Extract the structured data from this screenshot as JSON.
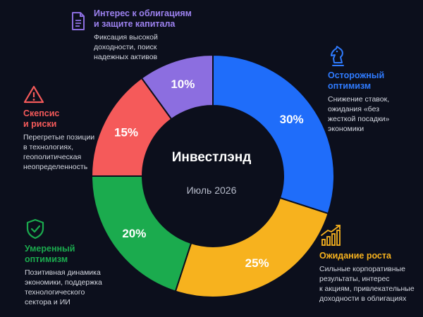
{
  "center": {
    "title": "Инвестлэнд",
    "subtitle": "Июль 2026"
  },
  "colors": {
    "background": "#0c0f1c",
    "cautious": "#1f6dfa",
    "growth": "#f7b21e",
    "moderate": "#1bab4e",
    "skeptic": "#f55a5a",
    "bonds": "#8c6ee0"
  },
  "chart_data": {
    "type": "pie",
    "donut": true,
    "categories": [
      "Осторожный оптимизм",
      "Ожидание роста",
      "Умеренный оптимизм",
      "Скепсис и риски",
      "Интерес к облигациям и защите капитала"
    ],
    "values": [
      30,
      25,
      20,
      15,
      10
    ],
    "value_labels": [
      "30%",
      "25%",
      "20%",
      "15%",
      "10%"
    ]
  },
  "categories": [
    {
      "key": "cautious",
      "title": "Осторожный\nоптимизм",
      "desc": "Снижение ставок,\nожидания «без\nжесткой посадки»\nэкономики",
      "icon": "chess-knight-icon"
    },
    {
      "key": "growth",
      "title": "Ожидание роста",
      "desc": "Сильные корпоративные\nрезультаты, интерес\nк акциям, привлекательные\nдоходности в облигациях",
      "icon": "growth-chart-icon"
    },
    {
      "key": "moderate",
      "title": "Умеренный\nоптимизм",
      "desc": "Позитивная динамика\nэкономики, поддержка\nтехнологического\nсектора и ИИ",
      "icon": "shield-check-icon"
    },
    {
      "key": "skeptic",
      "title": "Скепсис\nи риски",
      "desc": "Перегретые позиции\nв технологиях,\nгеополитическая\nнеопределенность",
      "icon": "warning-icon"
    },
    {
      "key": "bonds",
      "title": "Интерес к облигациям\nи защите капитала",
      "desc": "Фиксация высокой\nдоходности, поиск\nнадежных активов",
      "icon": "document-icon"
    }
  ]
}
